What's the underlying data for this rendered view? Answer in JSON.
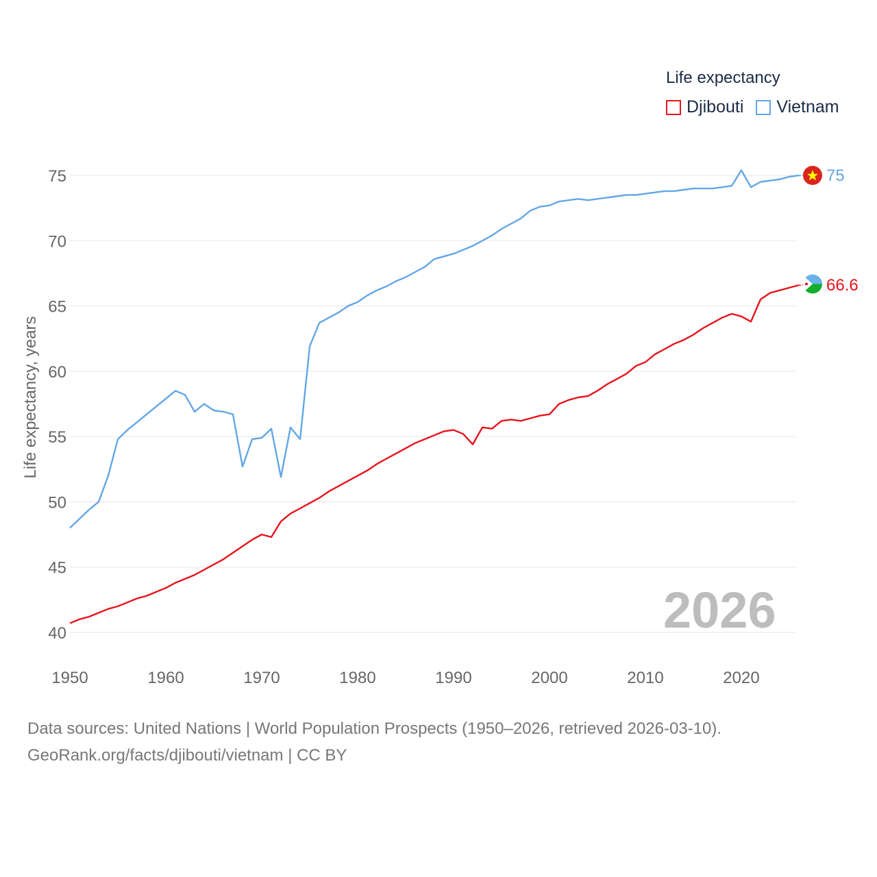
{
  "legend": {
    "title": "Life expectancy",
    "items": [
      {
        "label": "Djibouti",
        "color": "#e8131b"
      },
      {
        "label": "Vietnam",
        "color": "#62a6e6"
      }
    ]
  },
  "watermark_year": "2026",
  "source_line1": "Data sources: United Nations | World Population Prospects (1950–2026, retrieved 2026-03-10).",
  "source_line2": "GeoRank.org/facts/djibouti/vietnam | CC BY",
  "chart_data": {
    "type": "line",
    "title": "Life expectancy",
    "xlabel": "",
    "ylabel": "Life expectancy, years",
    "xlim": [
      1950,
      2026
    ],
    "ylim": [
      40,
      77
    ],
    "x_ticks": [
      1950,
      1960,
      1970,
      1980,
      1990,
      2000,
      2010,
      2020
    ],
    "y_ticks": [
      40,
      45,
      50,
      55,
      60,
      65,
      70,
      75
    ],
    "grid": true,
    "x": [
      1950,
      1951,
      1952,
      1953,
      1954,
      1955,
      1956,
      1957,
      1958,
      1959,
      1960,
      1961,
      1962,
      1963,
      1964,
      1965,
      1966,
      1967,
      1968,
      1969,
      1970,
      1971,
      1972,
      1973,
      1974,
      1975,
      1976,
      1977,
      1978,
      1979,
      1980,
      1981,
      1982,
      1983,
      1984,
      1985,
      1986,
      1987,
      1988,
      1989,
      1990,
      1991,
      1992,
      1993,
      1994,
      1995,
      1996,
      1997,
      1998,
      1999,
      2000,
      2001,
      2002,
      2003,
      2004,
      2005,
      2006,
      2007,
      2008,
      2009,
      2010,
      2011,
      2012,
      2013,
      2014,
      2015,
      2016,
      2017,
      2018,
      2019,
      2020,
      2021,
      2022,
      2023,
      2024,
      2025,
      2026
    ],
    "series": [
      {
        "name": "Djibouti",
        "color": "#e8131b",
        "end_label": "66.6",
        "values": [
          40.7,
          41.0,
          41.2,
          41.5,
          41.8,
          42.0,
          42.3,
          42.6,
          42.8,
          43.1,
          43.4,
          43.8,
          44.1,
          44.4,
          44.8,
          45.2,
          45.6,
          46.1,
          46.6,
          47.1,
          47.5,
          47.3,
          48.5,
          49.1,
          49.5,
          49.9,
          50.3,
          50.8,
          51.2,
          51.6,
          52.0,
          52.4,
          52.9,
          53.3,
          53.7,
          54.1,
          54.5,
          54.8,
          55.1,
          55.4,
          55.5,
          55.2,
          54.4,
          55.7,
          55.6,
          56.2,
          56.3,
          56.2,
          56.4,
          56.6,
          56.7,
          57.5,
          57.8,
          58.0,
          58.1,
          58.5,
          59.0,
          59.4,
          59.8,
          60.4,
          60.7,
          61.3,
          61.7,
          62.1,
          62.4,
          62.8,
          63.3,
          63.7,
          64.1,
          64.4,
          64.2,
          63.8,
          65.5,
          66.0,
          66.2,
          66.4,
          66.6
        ]
      },
      {
        "name": "Vietnam",
        "color": "#62a6e6",
        "end_label": "75",
        "values": [
          48.0,
          48.7,
          49.4,
          50.0,
          52.0,
          54.8,
          55.5,
          56.1,
          56.7,
          57.3,
          57.9,
          58.5,
          58.2,
          56.9,
          57.5,
          57.0,
          56.9,
          56.7,
          52.7,
          54.8,
          54.9,
          55.6,
          51.9,
          55.7,
          54.8,
          61.9,
          63.7,
          64.1,
          64.5,
          65.0,
          65.3,
          65.8,
          66.2,
          66.5,
          66.9,
          67.2,
          67.6,
          68.0,
          68.6,
          68.8,
          69.0,
          69.3,
          69.6,
          70.0,
          70.4,
          70.9,
          71.3,
          71.7,
          72.3,
          72.6,
          72.7,
          73.0,
          73.1,
          73.2,
          73.1,
          73.2,
          73.3,
          73.4,
          73.5,
          73.5,
          73.6,
          73.7,
          73.8,
          73.8,
          73.9,
          74.0,
          74.0,
          74.0,
          74.1,
          74.2,
          75.4,
          74.1,
          74.5,
          74.6,
          74.7,
          74.9,
          75.0
        ]
      }
    ]
  }
}
